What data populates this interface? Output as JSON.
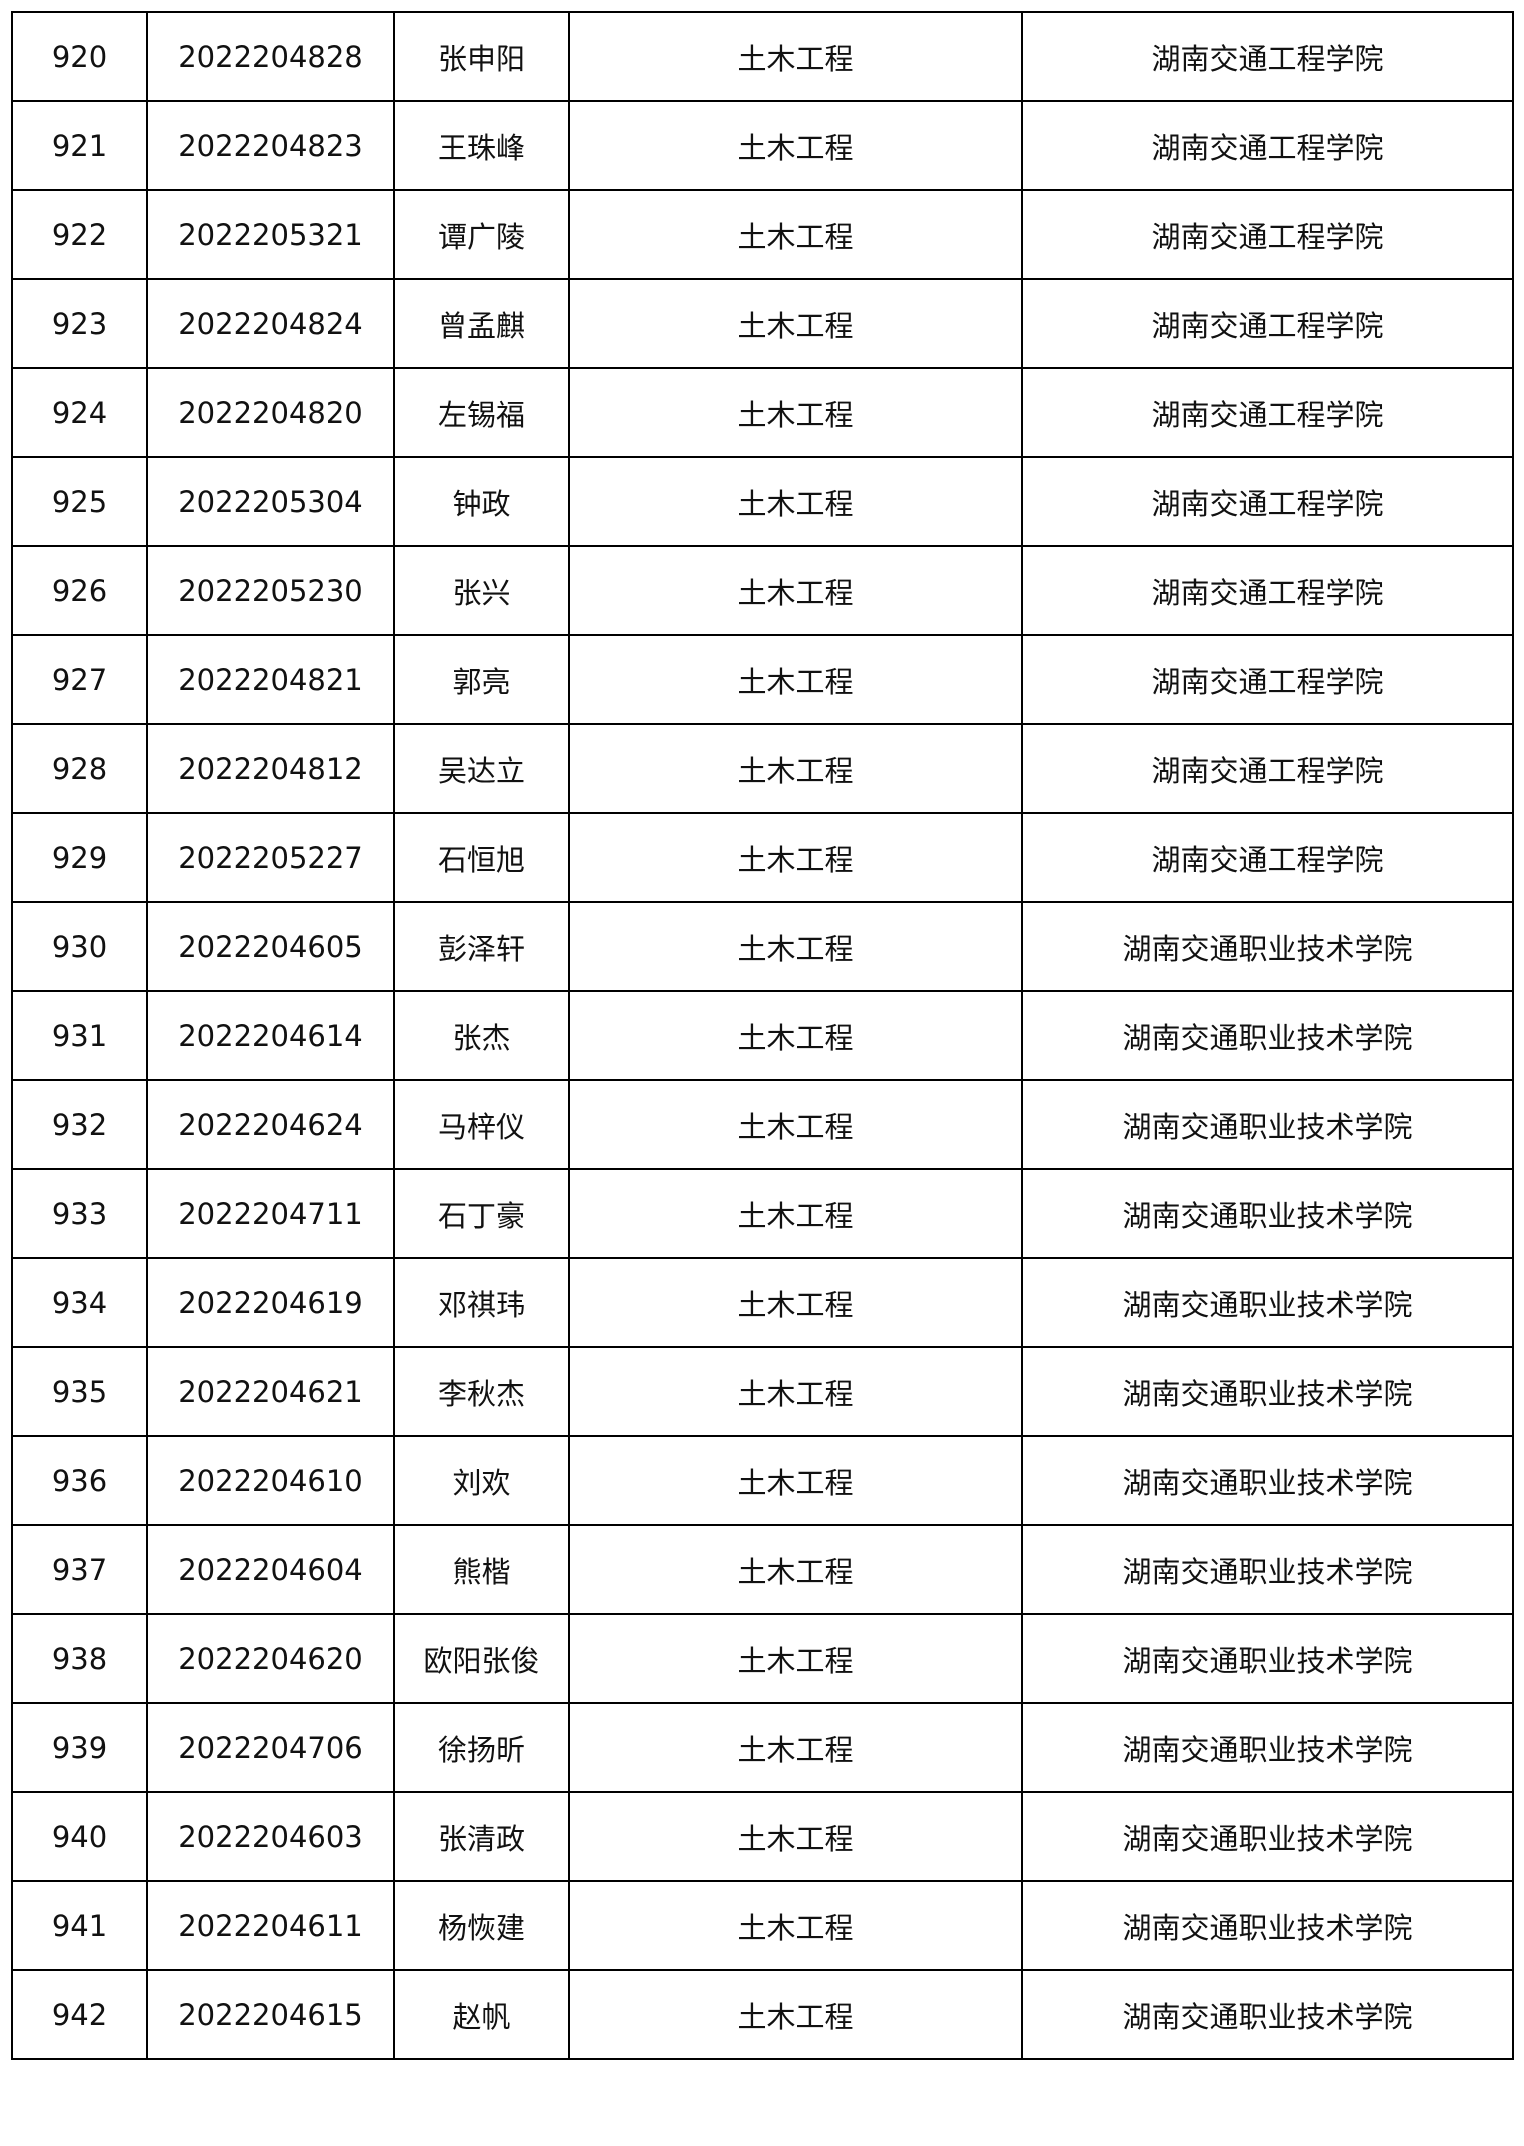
{
  "table": {
    "rows": [
      [
        "920",
        "2022204828",
        "张申阳",
        "土木工程",
        "湖南交通工程学院"
      ],
      [
        "921",
        "2022204823",
        "王珠峰",
        "土木工程",
        "湖南交通工程学院"
      ],
      [
        "922",
        "2022205321",
        "谭广陵",
        "土木工程",
        "湖南交通工程学院"
      ],
      [
        "923",
        "2022204824",
        "曾孟麒",
        "土木工程",
        "湖南交通工程学院"
      ],
      [
        "924",
        "2022204820",
        "左锡福",
        "土木工程",
        "湖南交通工程学院"
      ],
      [
        "925",
        "2022205304",
        "钟政",
        "土木工程",
        "湖南交通工程学院"
      ],
      [
        "926",
        "2022205230",
        "张兴",
        "土木工程",
        "湖南交通工程学院"
      ],
      [
        "927",
        "2022204821",
        "郭亮",
        "土木工程",
        "湖南交通工程学院"
      ],
      [
        "928",
        "2022204812",
        "吴达立",
        "土木工程",
        "湖南交通工程学院"
      ],
      [
        "929",
        "2022205227",
        "石恒旭",
        "土木工程",
        "湖南交通工程学院"
      ],
      [
        "930",
        "2022204605",
        "彭泽轩",
        "土木工程",
        "湖南交通职业技术学院"
      ],
      [
        "931",
        "2022204614",
        "张杰",
        "土木工程",
        "湖南交通职业技术学院"
      ],
      [
        "932",
        "2022204624",
        "马梓仪",
        "土木工程",
        "湖南交通职业技术学院"
      ],
      [
        "933",
        "2022204711",
        "石丁豪",
        "土木工程",
        "湖南交通职业技术学院"
      ],
      [
        "934",
        "2022204619",
        "邓祺玮",
        "土木工程",
        "湖南交通职业技术学院"
      ],
      [
        "935",
        "2022204621",
        "李秋杰",
        "土木工程",
        "湖南交通职业技术学院"
      ],
      [
        "936",
        "2022204610",
        "刘欢",
        "土木工程",
        "湖南交通职业技术学院"
      ],
      [
        "937",
        "2022204604",
        "熊楷",
        "土木工程",
        "湖南交通职业技术学院"
      ],
      [
        "938",
        "2022204620",
        "欧阳张俊",
        "土木工程",
        "湖南交通职业技术学院"
      ],
      [
        "939",
        "2022204706",
        "徐扬昕",
        "土木工程",
        "湖南交通职业技术学院"
      ],
      [
        "940",
        "2022204603",
        "张清政",
        "土木工程",
        "湖南交通职业技术学院"
      ],
      [
        "941",
        "2022204611",
        "杨恢建",
        "土木工程",
        "湖南交通职业技术学院"
      ],
      [
        "942",
        "2022204615",
        "赵帆",
        "土木工程",
        "湖南交通职业技术学院"
      ]
    ]
  }
}
